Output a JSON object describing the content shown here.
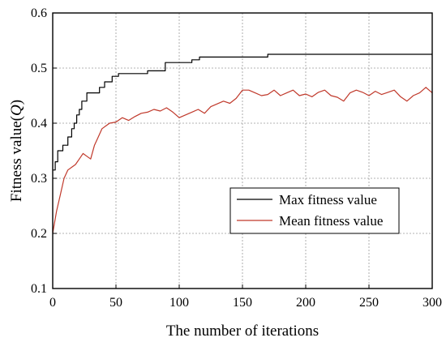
{
  "chart_data": {
    "type": "line",
    "title": "",
    "xlabel": "The number of iterations",
    "ylabel_prefix": "Fitness value(",
    "ylabel_var": "Q",
    "ylabel_suffix": ")",
    "xlim": [
      0,
      300
    ],
    "ylim": [
      0.1,
      0.6
    ],
    "xticks": [
      0,
      50,
      100,
      150,
      200,
      250,
      300
    ],
    "yticks": [
      0.1,
      0.2,
      0.3,
      0.4,
      0.5,
      0.6
    ],
    "grid": true,
    "legend_position": "center-right",
    "series": [
      {
        "name": "Max fitness value",
        "color": "#000000",
        "step": true,
        "points": [
          [
            0,
            0.315
          ],
          [
            2,
            0.33
          ],
          [
            4,
            0.35
          ],
          [
            8,
            0.36
          ],
          [
            12,
            0.375
          ],
          [
            15,
            0.39
          ],
          [
            17,
            0.4
          ],
          [
            19,
            0.415
          ],
          [
            21,
            0.425
          ],
          [
            23,
            0.44
          ],
          [
            27,
            0.455
          ],
          [
            37,
            0.465
          ],
          [
            41,
            0.475
          ],
          [
            47,
            0.485
          ],
          [
            52,
            0.49
          ],
          [
            75,
            0.495
          ],
          [
            89,
            0.51
          ],
          [
            110,
            0.515
          ],
          [
            116,
            0.52
          ],
          [
            170,
            0.525
          ],
          [
            300,
            0.525
          ]
        ]
      },
      {
        "name": "Mean fitness value",
        "color": "#c0392b",
        "step": false,
        "points": [
          [
            0,
            0.2
          ],
          [
            3,
            0.24
          ],
          [
            6,
            0.27
          ],
          [
            9,
            0.3
          ],
          [
            12,
            0.315
          ],
          [
            15,
            0.32
          ],
          [
            18,
            0.325
          ],
          [
            21,
            0.335
          ],
          [
            24,
            0.345
          ],
          [
            27,
            0.34
          ],
          [
            30,
            0.335
          ],
          [
            33,
            0.36
          ],
          [
            36,
            0.375
          ],
          [
            39,
            0.39
          ],
          [
            42,
            0.395
          ],
          [
            45,
            0.4
          ],
          [
            50,
            0.402
          ],
          [
            55,
            0.41
          ],
          [
            60,
            0.405
          ],
          [
            65,
            0.412
          ],
          [
            70,
            0.418
          ],
          [
            75,
            0.42
          ],
          [
            80,
            0.425
          ],
          [
            85,
            0.422
          ],
          [
            90,
            0.428
          ],
          [
            95,
            0.42
          ],
          [
            100,
            0.41
          ],
          [
            105,
            0.415
          ],
          [
            110,
            0.42
          ],
          [
            115,
            0.425
          ],
          [
            120,
            0.418
          ],
          [
            125,
            0.43
          ],
          [
            130,
            0.435
          ],
          [
            135,
            0.44
          ],
          [
            140,
            0.436
          ],
          [
            145,
            0.445
          ],
          [
            150,
            0.46
          ],
          [
            155,
            0.46
          ],
          [
            160,
            0.455
          ],
          [
            165,
            0.45
          ],
          [
            170,
            0.452
          ],
          [
            175,
            0.46
          ],
          [
            180,
            0.45
          ],
          [
            185,
            0.455
          ],
          [
            190,
            0.46
          ],
          [
            195,
            0.45
          ],
          [
            200,
            0.453
          ],
          [
            205,
            0.448
          ],
          [
            210,
            0.456
          ],
          [
            215,
            0.46
          ],
          [
            220,
            0.45
          ],
          [
            225,
            0.447
          ],
          [
            230,
            0.44
          ],
          [
            235,
            0.455
          ],
          [
            240,
            0.46
          ],
          [
            245,
            0.456
          ],
          [
            250,
            0.45
          ],
          [
            255,
            0.458
          ],
          [
            260,
            0.452
          ],
          [
            265,
            0.456
          ],
          [
            270,
            0.46
          ],
          [
            275,
            0.448
          ],
          [
            280,
            0.44
          ],
          [
            285,
            0.45
          ],
          [
            290,
            0.455
          ],
          [
            295,
            0.465
          ],
          [
            300,
            0.455
          ]
        ]
      }
    ]
  }
}
